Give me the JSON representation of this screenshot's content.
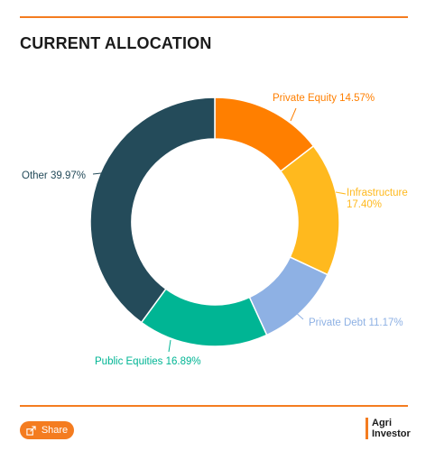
{
  "chart_data": {
    "type": "pie",
    "title": "CURRENT ALLOCATION",
    "style": "donut",
    "slices": [
      {
        "label": "Private Equity",
        "value": 14.57,
        "display": "Private Equity 14.57%",
        "color": "#ff7f00"
      },
      {
        "label": "Infrastructure",
        "value": 17.4,
        "display": "Infrastructure 17.40%",
        "color": "#ffb91e"
      },
      {
        "label": "Private Debt",
        "value": 11.17,
        "display": "Private Debt 11.17%",
        "color": "#8eb1e4"
      },
      {
        "label": "Public Equities",
        "value": 16.89,
        "display": "Public Equities 16.89%",
        "color": "#00b594"
      },
      {
        "label": "Other",
        "value": 39.97,
        "display": "Other 39.97%",
        "color": "#244b5a"
      }
    ]
  },
  "footer": {
    "share_label": "Share",
    "brand_line1": "Agri",
    "brand_line2": "Investor"
  },
  "colors": {
    "accent": "#f47c20"
  }
}
